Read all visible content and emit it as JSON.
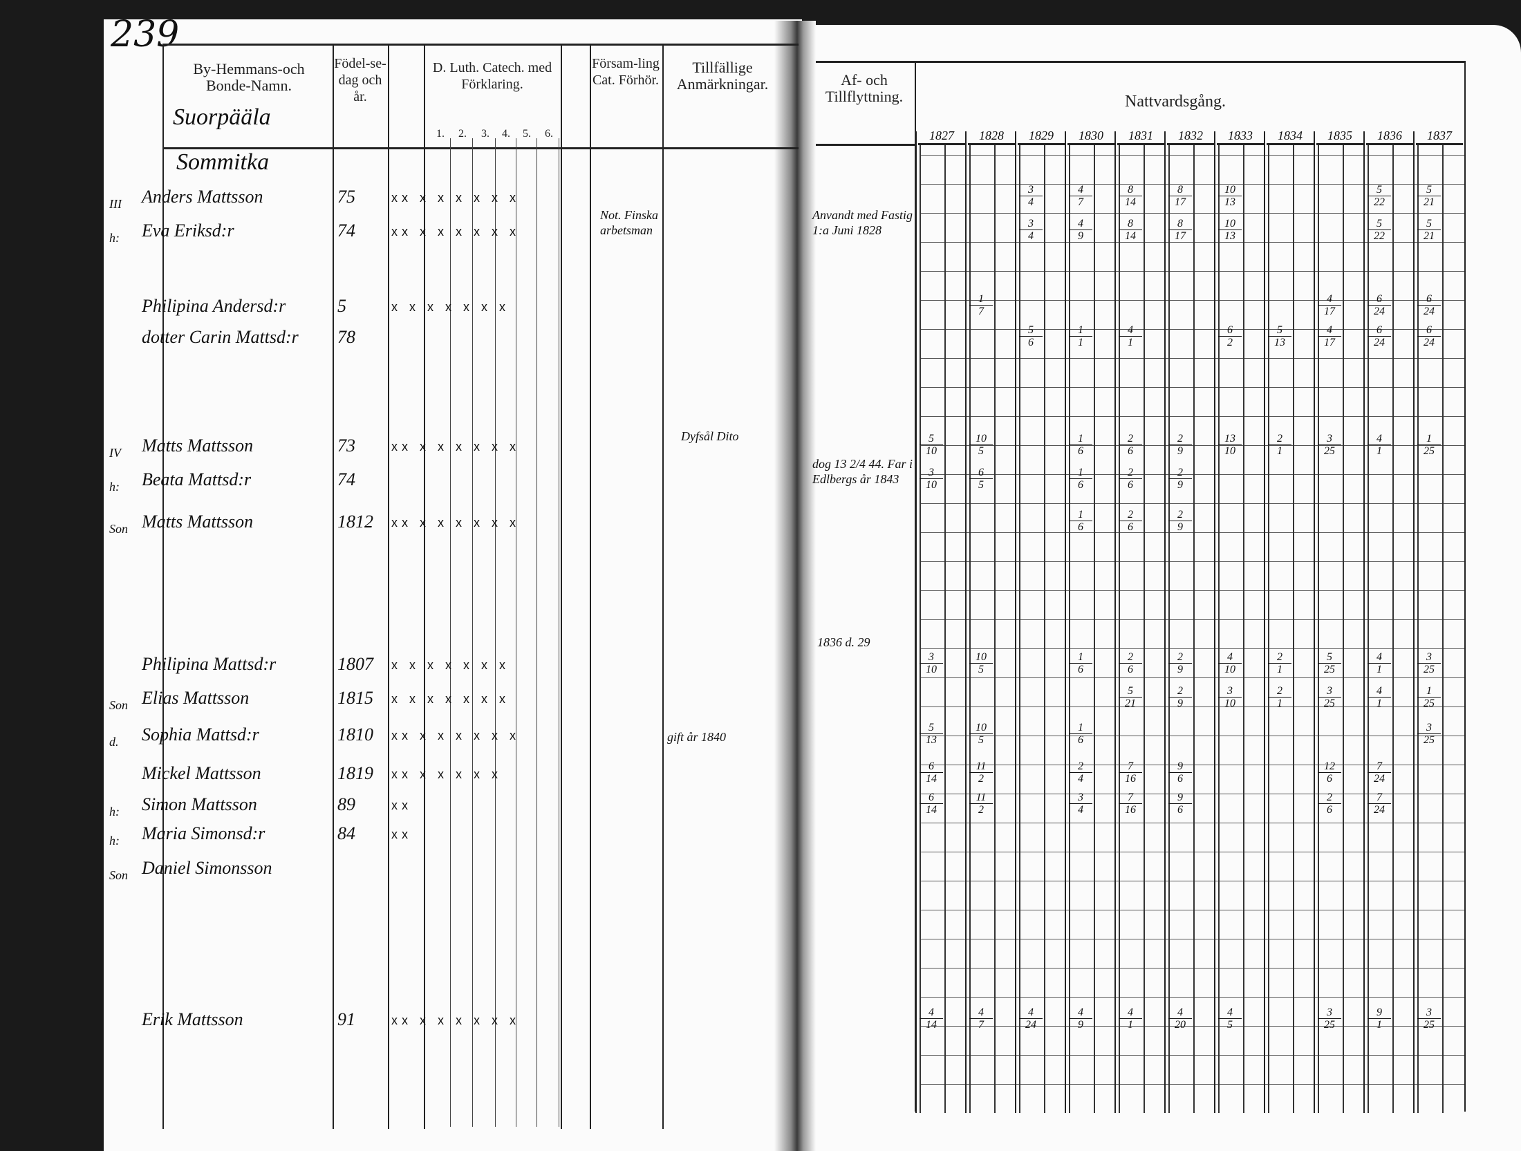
{
  "page_number": "239",
  "headers": {
    "name": "By-Hemmans-och Bonde-Namn.",
    "birth": "Födel-se-dag och år.",
    "catechism": "D. Luth. Catech. med Förklaring.",
    "catechism_cols": [
      "1.",
      "2.",
      "3.",
      "4.",
      "5.",
      "6."
    ],
    "hearing": "Försam-ling Cat. Förhör.",
    "remarks": "Tillfällige Anmärkningar.",
    "moving": "Af- och Tillflyttning.",
    "communion": "Nattvardsgång.",
    "years": [
      "1827",
      "1828",
      "1829",
      "1830",
      "1831",
      "1832",
      "1833",
      "1834",
      "1835",
      "1836",
      "1837"
    ]
  },
  "village": "Suorpääla",
  "farm": "Sommitka",
  "persons": [
    {
      "prefix": "III",
      "name": "Anders Mattsson",
      "birth": "75",
      "marks": "xx x x x x x x",
      "communion": [
        [
          "",
          ""
        ],
        [
          "",
          ""
        ],
        [
          "3",
          "4"
        ],
        [
          "4",
          "7"
        ],
        [
          "8",
          "14"
        ],
        [
          "8",
          "17"
        ],
        [
          "10",
          "13"
        ],
        [
          "",
          ""
        ],
        [
          "",
          ""
        ],
        [
          "5",
          "22"
        ],
        [
          "5",
          "21"
        ]
      ]
    },
    {
      "prefix": "h:",
      "name": "Eva Eriksd:r",
      "birth": "74",
      "marks": "xx x x x x x x",
      "communion": [
        [
          "",
          ""
        ],
        [
          "",
          ""
        ],
        [
          "3",
          "4"
        ],
        [
          "4",
          "9"
        ],
        [
          "8",
          "14"
        ],
        [
          "8",
          "17"
        ],
        [
          "10",
          "13"
        ],
        [
          "",
          ""
        ],
        [
          "",
          ""
        ],
        [
          "5",
          "22"
        ],
        [
          "5",
          "21"
        ]
      ]
    },
    {
      "prefix": "",
      "name": "Philipina Andersd:r",
      "birth": "5",
      "marks": "x x x x x x x",
      "communion": [
        [
          "",
          ""
        ],
        [
          "1",
          "7"
        ],
        [
          "",
          ""
        ],
        [
          "",
          ""
        ],
        [
          "",
          ""
        ],
        [
          "",
          ""
        ],
        [
          "",
          ""
        ],
        [
          "",
          ""
        ],
        [
          "4",
          "17"
        ],
        [
          "6",
          "24"
        ],
        [
          "6",
          "24"
        ]
      ]
    },
    {
      "prefix": "",
      "name": "dotter Carin Mattsd:r",
      "birth": "78",
      "marks": "",
      "communion": [
        [
          "",
          ""
        ],
        [
          "",
          ""
        ],
        [
          "5",
          "6"
        ],
        [
          "1",
          "1"
        ],
        [
          "4",
          "1"
        ],
        [
          "",
          ""
        ],
        [
          "6",
          "2"
        ],
        [
          "5",
          "13"
        ],
        [
          "4",
          "17"
        ],
        [
          "6",
          "24"
        ],
        [
          "6",
          "24"
        ]
      ]
    },
    {
      "prefix": "IV",
      "name": "Matts Mattsson",
      "birth": "73",
      "marks": "xx x x x x x x",
      "communion": [
        [
          "5",
          "10"
        ],
        [
          "10",
          "5"
        ],
        [
          "",
          ""
        ],
        [
          "1",
          "6"
        ],
        [
          "2",
          "6"
        ],
        [
          "2",
          "9"
        ],
        [
          "13",
          "10"
        ],
        [
          "2",
          "1"
        ],
        [
          "3",
          "25"
        ],
        [
          "4",
          "1"
        ],
        [
          "1",
          "25"
        ]
      ]
    },
    {
      "prefix": "h:",
      "name": "Beata Mattsd:r",
      "birth": "74",
      "marks": "",
      "communion": [
        [
          "3",
          "10"
        ],
        [
          "6",
          "5"
        ],
        [
          "",
          ""
        ],
        [
          "1",
          "6"
        ],
        [
          "2",
          "6"
        ],
        [
          "2",
          "9"
        ],
        [
          "",
          ""
        ],
        [
          "",
          ""
        ],
        [
          "",
          ""
        ],
        [
          "",
          ""
        ],
        [
          "",
          ""
        ]
      ]
    },
    {
      "prefix": "Son",
      "name": "Matts Mattsson",
      "birth": "1812",
      "marks": "xx x x x x x x",
      "communion": [
        [
          "",
          ""
        ],
        [
          "",
          ""
        ],
        [
          "",
          ""
        ],
        [
          "1",
          "6"
        ],
        [
          "2",
          "6"
        ],
        [
          "2",
          "9"
        ],
        [
          "",
          ""
        ],
        [
          "",
          ""
        ],
        [
          "",
          ""
        ],
        [
          "",
          ""
        ],
        [
          "",
          ""
        ]
      ]
    },
    {
      "prefix": "",
      "name": "Philipina Mattsd:r",
      "birth": "1807",
      "marks": "x x x x x x x",
      "communion": [
        [
          "3",
          "10"
        ],
        [
          "10",
          "5"
        ],
        [
          "",
          ""
        ],
        [
          "1",
          "6"
        ],
        [
          "2",
          "6"
        ],
        [
          "2",
          "9"
        ],
        [
          "4",
          "10"
        ],
        [
          "2",
          "1"
        ],
        [
          "5",
          "25"
        ],
        [
          "4",
          "1"
        ],
        [
          "3",
          "25"
        ]
      ]
    },
    {
      "prefix": "Son",
      "name": "Elias Mattsson",
      "birth": "1815",
      "marks": "x x x x x x x",
      "communion": [
        [
          "",
          ""
        ],
        [
          "",
          ""
        ],
        [
          "",
          ""
        ],
        [
          "",
          ""
        ],
        [
          "5",
          "21"
        ],
        [
          "2",
          "9"
        ],
        [
          "3",
          "10"
        ],
        [
          "2",
          "1"
        ],
        [
          "3",
          "25"
        ],
        [
          "4",
          "1"
        ],
        [
          "1",
          "25"
        ]
      ]
    },
    {
      "prefix": "d.",
      "name": "Sophia Mattsd:r",
      "birth": "1810",
      "marks": "xx x x x x x x",
      "communion": [
        [
          "5",
          "13"
        ],
        [
          "10",
          "5"
        ],
        [
          "",
          ""
        ],
        [
          "1",
          "6"
        ],
        [
          "",
          ""
        ],
        [
          "",
          ""
        ],
        [
          "",
          ""
        ],
        [
          "",
          ""
        ],
        [
          "",
          ""
        ],
        [
          "",
          ""
        ],
        [
          "3",
          "25"
        ]
      ]
    },
    {
      "prefix": "",
      "name": "Mickel Mattsson",
      "birth": "1819",
      "marks": "xx x x x x x",
      "communion": [
        [
          "6",
          "14"
        ],
        [
          "11",
          "2"
        ],
        [
          "",
          ""
        ],
        [
          "2",
          "4"
        ],
        [
          "7",
          "16"
        ],
        [
          "9",
          "6"
        ],
        [
          "",
          ""
        ],
        [
          "",
          ""
        ],
        [
          "12",
          "6"
        ],
        [
          "7",
          "24"
        ],
        [
          "",
          ""
        ]
      ]
    },
    {
      "prefix": "h:",
      "name": "Simon Mattsson",
      "birth": "89",
      "marks": "xx",
      "communion": [
        [
          "6",
          "14"
        ],
        [
          "11",
          "2"
        ],
        [
          "",
          ""
        ],
        [
          "3",
          "4"
        ],
        [
          "7",
          "16"
        ],
        [
          "9",
          "6"
        ],
        [
          "",
          ""
        ],
        [
          "",
          ""
        ],
        [
          "2",
          "6"
        ],
        [
          "7",
          "24"
        ],
        [
          "",
          ""
        ]
      ]
    },
    {
      "prefix": "h:",
      "name": "Maria Simonsd:r",
      "birth": "84",
      "marks": "xx",
      "communion": [
        [
          "",
          ""
        ],
        [
          "",
          ""
        ],
        [
          "",
          ""
        ],
        [
          "",
          ""
        ],
        [
          "",
          ""
        ],
        [
          "",
          ""
        ],
        [
          "",
          ""
        ],
        [
          "",
          ""
        ],
        [
          "",
          ""
        ],
        [
          "",
          ""
        ],
        [
          "",
          ""
        ]
      ]
    },
    {
      "prefix": "Son",
      "name": "Daniel Simonsson",
      "birth": "",
      "marks": "",
      "communion": [
        [
          "",
          ""
        ],
        [
          "",
          ""
        ],
        [
          "",
          ""
        ],
        [
          "",
          ""
        ],
        [
          "",
          ""
        ],
        [
          "",
          ""
        ],
        [
          "",
          ""
        ],
        [
          "",
          ""
        ],
        [
          "",
          ""
        ],
        [
          "",
          ""
        ],
        [
          "",
          ""
        ]
      ]
    },
    {
      "prefix": "",
      "name": "Erik Mattsson",
      "birth": "91",
      "marks": "xx x x x x x x",
      "communion": [
        [
          "4",
          "14"
        ],
        [
          "4",
          "7"
        ],
        [
          "4",
          "24"
        ],
        [
          "4",
          "9"
        ],
        [
          "4",
          "1"
        ],
        [
          "4",
          "20"
        ],
        [
          "4",
          "5"
        ],
        [
          "",
          ""
        ],
        [
          "3",
          "25"
        ],
        [
          "9",
          "1"
        ],
        [
          "3",
          "25"
        ]
      ]
    }
  ],
  "remarks": {
    "anders": "Not. Finska arbetsman",
    "matts": "Dyfsål Dito",
    "sophia": "gift år 1840"
  },
  "moving": {
    "anders": "Anvandt med Fastig 1:a Juni 1828",
    "matts": "dog 13 2/4 44. Far i Edlbergs år 1843",
    "philipina": "1836 d. 29"
  }
}
